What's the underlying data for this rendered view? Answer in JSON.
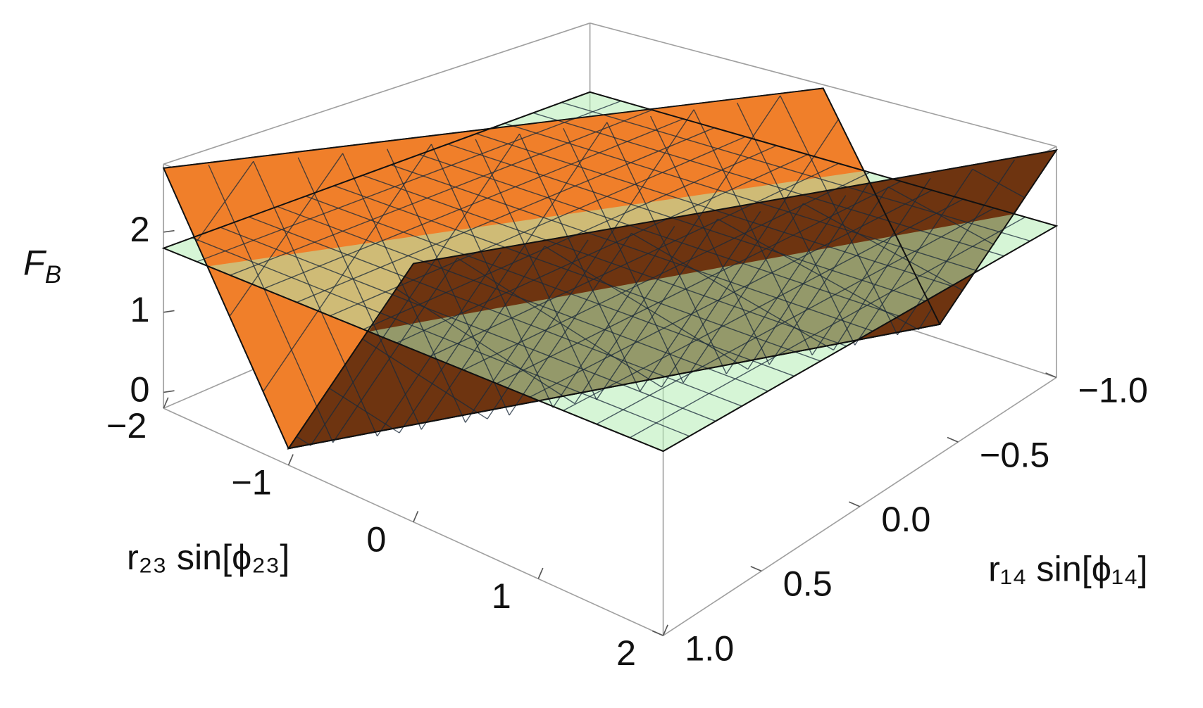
{
  "chart_data": {
    "type": "surface3d",
    "xlabel": "r₂₃ sin[ϕ₂₃]",
    "ylabel": "r₁₄ sin[ϕ₁₄]",
    "zlabel": {
      "base": "F",
      "sub": "B"
    },
    "xlim": [
      -2,
      2
    ],
    "ylim": [
      -1,
      1
    ],
    "zlim": [
      -0.2,
      2.85
    ],
    "xticks": [
      {
        "value": -2,
        "label": "−2"
      },
      {
        "value": -1,
        "label": "−1"
      },
      0,
      1,
      2
    ],
    "yticks": [
      {
        "value": -1,
        "label": "−1.0"
      },
      {
        "value": -0.5,
        "label": "−0.5"
      },
      {
        "value": 0,
        "label": "0.0"
      },
      0.5,
      {
        "value": 1,
        "label": "1.0"
      }
    ],
    "zticks": [
      0,
      1,
      2
    ],
    "mesh": 15,
    "surfaces": [
      {
        "color": "#f07f2a",
        "vertices": [
          [
            -2,
            1,
            2.8
          ],
          [
            -1,
            1,
            0
          ],
          [
            1,
            -1,
            0
          ],
          [
            0,
            -1,
            2.8
          ]
        ]
      },
      {
        "color": "#6e3410",
        "vertices": [
          [
            -1,
            1,
            0
          ],
          [
            0,
            1,
            2.8
          ],
          [
            2,
            -1,
            2.8
          ],
          [
            1,
            -1,
            0
          ]
        ]
      },
      {
        "color": "#b5ecb5",
        "opacity": 0.55,
        "vertices": [
          [
            -2,
            1,
            1.8
          ],
          [
            2,
            1,
            1.8
          ],
          [
            2,
            -1,
            1.8
          ],
          [
            -2,
            -1,
            1.8
          ]
        ]
      }
    ]
  }
}
